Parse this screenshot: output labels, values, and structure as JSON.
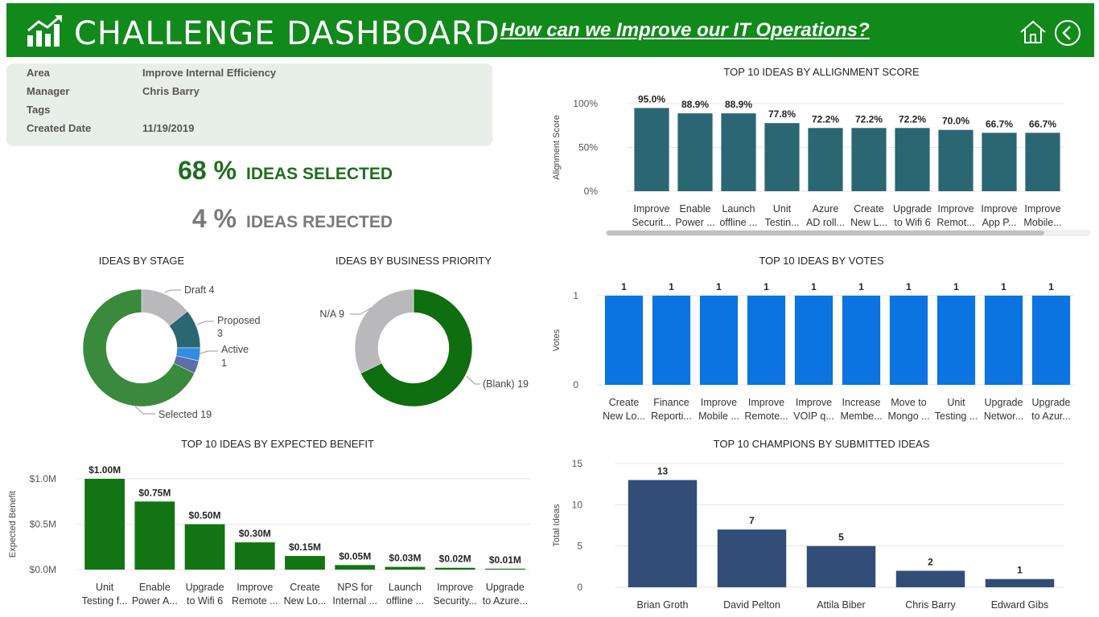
{
  "header": {
    "title": "CHALLENGE DASHBOARD",
    "question": "How can we Improve our IT Operations?",
    "icons": [
      "chart-logo-icon",
      "home-icon",
      "back-icon"
    ]
  },
  "info": {
    "rows": [
      {
        "key": "Area",
        "value": "Improve Internal Efficiency"
      },
      {
        "key": "Manager",
        "value": "Chris Barry"
      },
      {
        "key": "Tags",
        "value": ""
      },
      {
        "key": "Created Date",
        "value": "11/19/2019"
      }
    ]
  },
  "kpis": {
    "selected": {
      "value": "68 %",
      "label": "IDEAS SELECTED",
      "color": "#1e6e1e"
    },
    "rejected": {
      "value": "4 %",
      "label": "IDEAS REJECTED",
      "color": "#7a7a7a"
    }
  },
  "colors": {
    "header": "#118a1b",
    "alignment_bar": "#2b6673",
    "votes_bar": "#0b74e0",
    "benefit_bar": "#137413",
    "champions_bar": "#324e78"
  },
  "chart_data": [
    {
      "id": "stage",
      "type": "pie",
      "title": "IDEAS BY STAGE",
      "slices": [
        {
          "label": "Draft",
          "value": 4,
          "color": "#b9b9bb"
        },
        {
          "label": "Proposed",
          "value": 3,
          "color": "#2b6673"
        },
        {
          "label": "Active",
          "value": 1,
          "color": "#2f8de4"
        },
        {
          "label": "",
          "value": 1,
          "color": "#5c6fa8"
        },
        {
          "label": "Selected",
          "value": 19,
          "color": "#3a8a3e"
        }
      ]
    },
    {
      "id": "priority",
      "type": "pie",
      "title": "IDEAS BY BUSINESS PRIORITY",
      "slices": [
        {
          "label": "(Blank)",
          "value": 19,
          "color": "#0f6e0f"
        },
        {
          "label": "N/A",
          "value": 9,
          "color": "#b9b9bb"
        }
      ]
    },
    {
      "id": "benefit",
      "type": "bar",
      "title": "TOP 10 IDEAS BY EXPECTED BENEFIT",
      "ylabel": "Expected Benefit",
      "yticks": [
        "$0.0M",
        "$0.5M",
        "$1.0M"
      ],
      "ylim": [
        0,
        1.0
      ],
      "categories": [
        [
          "Unit",
          "Testing f..."
        ],
        [
          "Enable",
          "Power A..."
        ],
        [
          "Upgrade",
          "to Wifi 6"
        ],
        [
          "Improve",
          "Remote ..."
        ],
        [
          "Create",
          "New Lo..."
        ],
        [
          "NPS for",
          "Internal ..."
        ],
        [
          "Launch",
          "offline ..."
        ],
        [
          "Improve",
          "Security..."
        ],
        [
          "Upgrade",
          "to Azure..."
        ]
      ],
      "values": [
        1.0,
        0.75,
        0.5,
        0.3,
        0.15,
        0.05,
        0.03,
        0.02,
        0.01
      ],
      "labels": [
        "$1.00M",
        "$0.75M",
        "$0.50M",
        "$0.30M",
        "$0.15M",
        "$0.05M",
        "$0.03M",
        "$0.02M",
        "$0.01M"
      ]
    },
    {
      "id": "alignment",
      "type": "bar",
      "title": "TOP 10 IDEAS BY ALLIGNMENT SCORE",
      "ylabel": "Alignment Score",
      "yticks": [
        "0%",
        "50%",
        "100%"
      ],
      "ylim": [
        0,
        100
      ],
      "categories": [
        [
          "Improve",
          "Securit..."
        ],
        [
          "Enable",
          "Power ..."
        ],
        [
          "Launch",
          "offline ..."
        ],
        [
          "Unit",
          "Testin..."
        ],
        [
          "Azure",
          "AD roll..."
        ],
        [
          "Create",
          "New L..."
        ],
        [
          "Upgrade",
          "to Wifi 6"
        ],
        [
          "Improve",
          "Remot..."
        ],
        [
          "Improve",
          "App P..."
        ],
        [
          "Improve",
          "Mobile..."
        ]
      ],
      "values": [
        95.0,
        88.9,
        88.9,
        77.8,
        72.2,
        72.2,
        72.2,
        70.0,
        66.7,
        66.7
      ],
      "labels": [
        "95.0%",
        "88.9%",
        "88.9%",
        "77.8%",
        "72.2%",
        "72.2%",
        "72.2%",
        "70.0%",
        "66.7%",
        "66.7%"
      ]
    },
    {
      "id": "votes",
      "type": "bar",
      "title": "TOP 10 IDEAS BY VOTES",
      "ylabel": "Votes",
      "yticks": [
        "0",
        "1"
      ],
      "ylim": [
        0,
        1
      ],
      "categories": [
        [
          "Create",
          "New Lo..."
        ],
        [
          "Finance",
          "Reporti..."
        ],
        [
          "Improve",
          "Mobile ..."
        ],
        [
          "Improve",
          "Remote..."
        ],
        [
          "Improve",
          "VOIP q..."
        ],
        [
          "Increase",
          "Membe..."
        ],
        [
          "Move to",
          "Mongo ..."
        ],
        [
          "Unit",
          "Testing ..."
        ],
        [
          "Upgrade",
          "Networ..."
        ],
        [
          "Upgrade",
          "to Azur..."
        ]
      ],
      "values": [
        1,
        1,
        1,
        1,
        1,
        1,
        1,
        1,
        1,
        1
      ],
      "labels": [
        "1",
        "1",
        "1",
        "1",
        "1",
        "1",
        "1",
        "1",
        "1",
        "1"
      ]
    },
    {
      "id": "champions",
      "type": "bar",
      "title": "TOP 10 CHAMPIONS BY SUBMITTED IDEAS",
      "ylabel": "Total Ideas",
      "yticks": [
        "0",
        "5",
        "10",
        "15"
      ],
      "ylim": [
        0,
        15
      ],
      "categories": [
        [
          "Brian Groth"
        ],
        [
          "David Pelton"
        ],
        [
          "Attila Biber"
        ],
        [
          "Chris Barry"
        ],
        [
          "Edward Gibs"
        ]
      ],
      "values": [
        13,
        7,
        5,
        2,
        1
      ],
      "labels": [
        "13",
        "7",
        "5",
        "2",
        "1"
      ]
    }
  ]
}
